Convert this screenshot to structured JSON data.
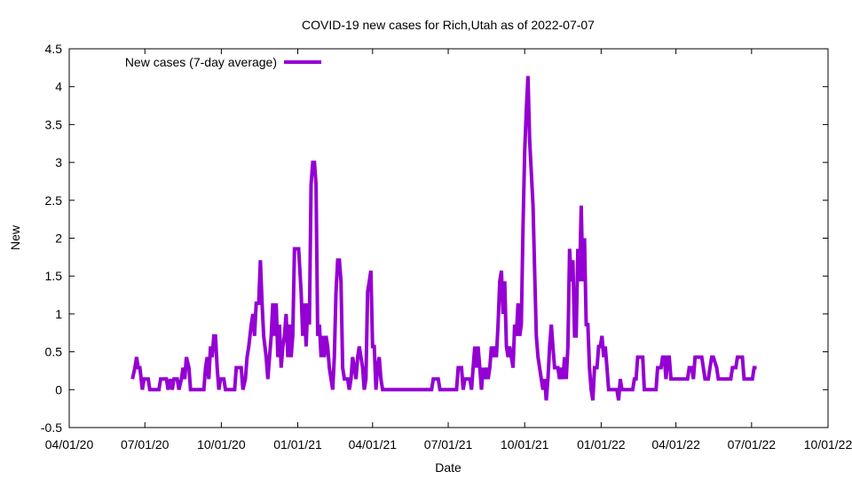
{
  "chart_data": {
    "type": "line",
    "title": "COVID-19 new cases for Rich,Utah as of 2022-07-07",
    "xlabel": "Date",
    "ylabel": "New",
    "ylim": [
      -0.5,
      4.5
    ],
    "xlim": [
      "2020-04-01",
      "2022-10-01"
    ],
    "grid": false,
    "legend_position": "top-left",
    "x_ticks": [
      {
        "date": "2020-04-01",
        "label": "04/01/20"
      },
      {
        "date": "2020-07-01",
        "label": "07/01/20"
      },
      {
        "date": "2020-10-01",
        "label": "10/01/20"
      },
      {
        "date": "2021-01-01",
        "label": "01/01/21"
      },
      {
        "date": "2021-04-01",
        "label": "04/01/21"
      },
      {
        "date": "2021-07-01",
        "label": "07/01/21"
      },
      {
        "date": "2021-10-01",
        "label": "10/01/21"
      },
      {
        "date": "2022-01-01",
        "label": "01/01/22"
      },
      {
        "date": "2022-04-01",
        "label": "04/01/22"
      },
      {
        "date": "2022-07-01",
        "label": "07/01/22"
      },
      {
        "date": "2022-10-01",
        "label": "10/01/22"
      }
    ],
    "y_ticks": [
      {
        "value": -0.5,
        "label": "-0.5"
      },
      {
        "value": 0,
        "label": "0"
      },
      {
        "value": 0.5,
        "label": "0.5"
      },
      {
        "value": 1,
        "label": "1"
      },
      {
        "value": 1.5,
        "label": "1.5"
      },
      {
        "value": 2,
        "label": "2"
      },
      {
        "value": 2.5,
        "label": "2.5"
      },
      {
        "value": 3,
        "label": "3"
      },
      {
        "value": 3.5,
        "label": "3.5"
      },
      {
        "value": 4,
        "label": "4"
      },
      {
        "value": 4.5,
        "label": "4.5"
      }
    ],
    "series": [
      {
        "name": "New cases (7-day average)",
        "color": "#9400d3",
        "points": [
          [
            "2020-06-16",
            0.14
          ],
          [
            "2020-06-19",
            0.29
          ],
          [
            "2020-06-21",
            0.43
          ],
          [
            "2020-06-23",
            0.29
          ],
          [
            "2020-06-25",
            0.29
          ],
          [
            "2020-06-28",
            0.0
          ],
          [
            "2020-06-30",
            0.14
          ],
          [
            "2020-07-05",
            0.14
          ],
          [
            "2020-07-07",
            0.0
          ],
          [
            "2020-07-18",
            0.0
          ],
          [
            "2020-07-20",
            0.14
          ],
          [
            "2020-07-27",
            0.14
          ],
          [
            "2020-07-29",
            0.0
          ],
          [
            "2020-08-01",
            0.14
          ],
          [
            "2020-08-03",
            0.0
          ],
          [
            "2020-08-05",
            0.14
          ],
          [
            "2020-08-09",
            0.14
          ],
          [
            "2020-08-11",
            0.0
          ],
          [
            "2020-08-14",
            0.14
          ],
          [
            "2020-08-16",
            0.29
          ],
          [
            "2020-08-18",
            0.14
          ],
          [
            "2020-08-20",
            0.43
          ],
          [
            "2020-08-23",
            0.29
          ],
          [
            "2020-08-25",
            0.0
          ],
          [
            "2020-09-10",
            0.0
          ],
          [
            "2020-09-12",
            0.29
          ],
          [
            "2020-09-14",
            0.43
          ],
          [
            "2020-09-16",
            0.14
          ],
          [
            "2020-09-18",
            0.57
          ],
          [
            "2020-09-20",
            0.43
          ],
          [
            "2020-09-22",
            0.71
          ],
          [
            "2020-09-24",
            0.71
          ],
          [
            "2020-09-26",
            0.29
          ],
          [
            "2020-09-28",
            0.0
          ],
          [
            "2020-09-30",
            0.14
          ],
          [
            "2020-10-04",
            0.14
          ],
          [
            "2020-10-06",
            0.0
          ],
          [
            "2020-10-17",
            0.0
          ],
          [
            "2020-10-19",
            0.29
          ],
          [
            "2020-10-25",
            0.29
          ],
          [
            "2020-10-27",
            0.0
          ],
          [
            "2020-10-30",
            0.14
          ],
          [
            "2020-11-01",
            0.43
          ],
          [
            "2020-11-03",
            0.57
          ],
          [
            "2020-11-06",
            0.86
          ],
          [
            "2020-11-08",
            1.0
          ],
          [
            "2020-11-10",
            0.71
          ],
          [
            "2020-11-12",
            1.14
          ],
          [
            "2020-11-15",
            1.14
          ],
          [
            "2020-11-17",
            1.71
          ],
          [
            "2020-11-19",
            1.14
          ],
          [
            "2020-11-21",
            0.71
          ],
          [
            "2020-11-24",
            0.43
          ],
          [
            "2020-11-26",
            0.14
          ],
          [
            "2020-11-28",
            0.43
          ],
          [
            "2020-11-30",
            0.71
          ],
          [
            "2020-12-02",
            1.14
          ],
          [
            "2020-12-04",
            0.71
          ],
          [
            "2020-12-06",
            1.14
          ],
          [
            "2020-12-08",
            0.43
          ],
          [
            "2020-12-10",
            0.86
          ],
          [
            "2020-12-12",
            0.29
          ],
          [
            "2020-12-14",
            0.57
          ],
          [
            "2020-12-16",
            0.71
          ],
          [
            "2020-12-18",
            1.0
          ],
          [
            "2020-12-20",
            0.43
          ],
          [
            "2020-12-22",
            0.86
          ],
          [
            "2020-12-24",
            0.43
          ],
          [
            "2020-12-26",
            0.71
          ],
          [
            "2020-12-28",
            1.86
          ],
          [
            "2021-01-02",
            1.86
          ],
          [
            "2021-01-05",
            1.29
          ],
          [
            "2021-01-07",
            0.71
          ],
          [
            "2021-01-09",
            1.14
          ],
          [
            "2021-01-11",
            0.57
          ],
          [
            "2021-01-13",
            1.14
          ],
          [
            "2021-01-15",
            0.86
          ],
          [
            "2021-01-17",
            2.71
          ],
          [
            "2021-01-19",
            3.0
          ],
          [
            "2021-01-21",
            3.0
          ],
          [
            "2021-01-23",
            2.71
          ],
          [
            "2021-01-25",
            0.71
          ],
          [
            "2021-01-27",
            0.86
          ],
          [
            "2021-01-29",
            0.43
          ],
          [
            "2021-01-31",
            0.71
          ],
          [
            "2021-02-02",
            0.43
          ],
          [
            "2021-02-04",
            0.71
          ],
          [
            "2021-02-06",
            0.57
          ],
          [
            "2021-02-08",
            0.29
          ],
          [
            "2021-02-10",
            0.14
          ],
          [
            "2021-02-12",
            0.0
          ],
          [
            "2021-02-14",
            0.43
          ],
          [
            "2021-02-16",
            1.29
          ],
          [
            "2021-02-18",
            1.71
          ],
          [
            "2021-02-20",
            1.71
          ],
          [
            "2021-02-22",
            1.43
          ],
          [
            "2021-02-24",
            0.29
          ],
          [
            "2021-02-26",
            0.14
          ],
          [
            "2021-03-02",
            0.14
          ],
          [
            "2021-03-04",
            0.0
          ],
          [
            "2021-03-06",
            0.14
          ],
          [
            "2021-03-08",
            0.43
          ],
          [
            "2021-03-10",
            0.29
          ],
          [
            "2021-03-12",
            0.14
          ],
          [
            "2021-03-14",
            0.43
          ],
          [
            "2021-03-16",
            0.57
          ],
          [
            "2021-03-18",
            0.43
          ],
          [
            "2021-03-20",
            0.29
          ],
          [
            "2021-03-22",
            0.0
          ],
          [
            "2021-03-24",
            0.14
          ],
          [
            "2021-03-26",
            1.29
          ],
          [
            "2021-03-28",
            1.43
          ],
          [
            "2021-03-30",
            1.57
          ],
          [
            "2021-04-01",
            0.57
          ],
          [
            "2021-04-03",
            0.57
          ],
          [
            "2021-04-05",
            0.0
          ],
          [
            "2021-04-07",
            0.29
          ],
          [
            "2021-04-09",
            0.43
          ],
          [
            "2021-04-11",
            0.14
          ],
          [
            "2021-04-13",
            0.0
          ],
          [
            "2021-06-11",
            0.0
          ],
          [
            "2021-06-13",
            0.14
          ],
          [
            "2021-06-19",
            0.14
          ],
          [
            "2021-06-21",
            0.0
          ],
          [
            "2021-07-11",
            0.0
          ],
          [
            "2021-07-13",
            0.29
          ],
          [
            "2021-07-17",
            0.29
          ],
          [
            "2021-07-19",
            0.0
          ],
          [
            "2021-07-21",
            0.14
          ],
          [
            "2021-07-27",
            0.14
          ],
          [
            "2021-07-29",
            0.0
          ],
          [
            "2021-07-31",
            0.29
          ],
          [
            "2021-08-02",
            0.57
          ],
          [
            "2021-08-04",
            0.29
          ],
          [
            "2021-08-06",
            0.57
          ],
          [
            "2021-08-08",
            0.29
          ],
          [
            "2021-08-10",
            0.0
          ],
          [
            "2021-08-12",
            0.29
          ],
          [
            "2021-08-14",
            0.14
          ],
          [
            "2021-08-16",
            0.29
          ],
          [
            "2021-08-18",
            0.14
          ],
          [
            "2021-08-20",
            0.29
          ],
          [
            "2021-08-22",
            0.57
          ],
          [
            "2021-08-24",
            0.43
          ],
          [
            "2021-08-26",
            0.57
          ],
          [
            "2021-08-28",
            0.43
          ],
          [
            "2021-08-30",
            0.86
          ],
          [
            "2021-09-01",
            1.43
          ],
          [
            "2021-09-03",
            1.57
          ],
          [
            "2021-09-05",
            1.0
          ],
          [
            "2021-09-07",
            1.43
          ],
          [
            "2021-09-09",
            0.57
          ],
          [
            "2021-09-11",
            0.43
          ],
          [
            "2021-09-13",
            0.57
          ],
          [
            "2021-09-15",
            0.43
          ],
          [
            "2021-09-17",
            0.29
          ],
          [
            "2021-09-19",
            0.86
          ],
          [
            "2021-09-21",
            0.71
          ],
          [
            "2021-09-23",
            1.14
          ],
          [
            "2021-09-25",
            0.71
          ],
          [
            "2021-09-27",
            0.86
          ],
          [
            "2021-09-29",
            2.14
          ],
          [
            "2021-10-01",
            3.14
          ],
          [
            "2021-10-03",
            3.71
          ],
          [
            "2021-10-05",
            4.14
          ],
          [
            "2021-10-07",
            3.29
          ],
          [
            "2021-10-09",
            2.86
          ],
          [
            "2021-10-11",
            2.43
          ],
          [
            "2021-10-13",
            1.57
          ],
          [
            "2021-10-15",
            0.71
          ],
          [
            "2021-10-17",
            0.43
          ],
          [
            "2021-10-19",
            0.29
          ],
          [
            "2021-10-21",
            0.14
          ],
          [
            "2021-10-23",
            0.0
          ],
          [
            "2021-10-25",
            0.14
          ],
          [
            "2021-10-27",
            -0.14
          ],
          [
            "2021-10-29",
            0.14
          ],
          [
            "2021-10-31",
            0.57
          ],
          [
            "2021-11-02",
            0.86
          ],
          [
            "2021-11-04",
            0.57
          ],
          [
            "2021-11-06",
            0.29
          ],
          [
            "2021-11-08",
            0.29
          ],
          [
            "2021-11-10",
            0.29
          ],
          [
            "2021-11-12",
            0.14
          ],
          [
            "2021-11-14",
            0.29
          ],
          [
            "2021-11-16",
            0.14
          ],
          [
            "2021-11-18",
            0.43
          ],
          [
            "2021-11-20",
            0.14
          ],
          [
            "2021-11-22",
            0.57
          ],
          [
            "2021-11-24",
            1.86
          ],
          [
            "2021-11-26",
            1.43
          ],
          [
            "2021-11-28",
            1.71
          ],
          [
            "2021-11-30",
            0.71
          ],
          [
            "2021-12-02",
            0.71
          ],
          [
            "2021-12-04",
            1.86
          ],
          [
            "2021-12-06",
            1.43
          ],
          [
            "2021-12-08",
            2.43
          ],
          [
            "2021-12-10",
            1.43
          ],
          [
            "2021-12-12",
            2.0
          ],
          [
            "2021-12-14",
            0.86
          ],
          [
            "2021-12-16",
            0.86
          ],
          [
            "2021-12-18",
            0.29
          ],
          [
            "2021-12-20",
            0.0
          ],
          [
            "2021-12-22",
            -0.14
          ],
          [
            "2021-12-24",
            0.29
          ],
          [
            "2021-12-27",
            0.29
          ],
          [
            "2021-12-29",
            0.57
          ],
          [
            "2021-12-31",
            0.57
          ],
          [
            "2022-01-02",
            0.71
          ],
          [
            "2022-01-04",
            0.43
          ],
          [
            "2022-01-06",
            0.57
          ],
          [
            "2022-01-08",
            0.29
          ],
          [
            "2022-01-10",
            0.0
          ],
          [
            "2022-01-20",
            0.0
          ],
          [
            "2022-01-22",
            -0.14
          ],
          [
            "2022-01-24",
            0.14
          ],
          [
            "2022-01-26",
            0.0
          ],
          [
            "2022-02-08",
            0.0
          ],
          [
            "2022-02-10",
            0.14
          ],
          [
            "2022-02-12",
            0.14
          ],
          [
            "2022-02-14",
            0.43
          ],
          [
            "2022-02-20",
            0.43
          ],
          [
            "2022-02-22",
            0.0
          ],
          [
            "2022-03-08",
            0.0
          ],
          [
            "2022-03-10",
            0.29
          ],
          [
            "2022-03-14",
            0.29
          ],
          [
            "2022-03-16",
            0.43
          ],
          [
            "2022-03-18",
            0.43
          ],
          [
            "2022-03-20",
            0.14
          ],
          [
            "2022-03-22",
            0.43
          ],
          [
            "2022-03-24",
            0.43
          ],
          [
            "2022-03-26",
            0.14
          ],
          [
            "2022-03-28",
            0.14
          ],
          [
            "2022-04-15",
            0.14
          ],
          [
            "2022-04-17",
            0.29
          ],
          [
            "2022-04-20",
            0.29
          ],
          [
            "2022-04-22",
            0.14
          ],
          [
            "2022-04-24",
            0.43
          ],
          [
            "2022-05-02",
            0.43
          ],
          [
            "2022-05-04",
            0.29
          ],
          [
            "2022-05-06",
            0.14
          ],
          [
            "2022-05-08",
            0.14
          ],
          [
            "2022-05-10",
            0.14
          ],
          [
            "2022-05-12",
            0.29
          ],
          [
            "2022-05-14",
            0.43
          ],
          [
            "2022-05-16",
            0.43
          ],
          [
            "2022-05-20",
            0.29
          ],
          [
            "2022-05-22",
            0.14
          ],
          [
            "2022-06-06",
            0.14
          ],
          [
            "2022-06-08",
            0.29
          ],
          [
            "2022-06-12",
            0.29
          ],
          [
            "2022-06-14",
            0.43
          ],
          [
            "2022-06-20",
            0.43
          ],
          [
            "2022-06-22",
            0.14
          ],
          [
            "2022-07-02",
            0.14
          ],
          [
            "2022-07-04",
            0.29
          ],
          [
            "2022-07-07",
            0.29
          ]
        ]
      }
    ]
  }
}
